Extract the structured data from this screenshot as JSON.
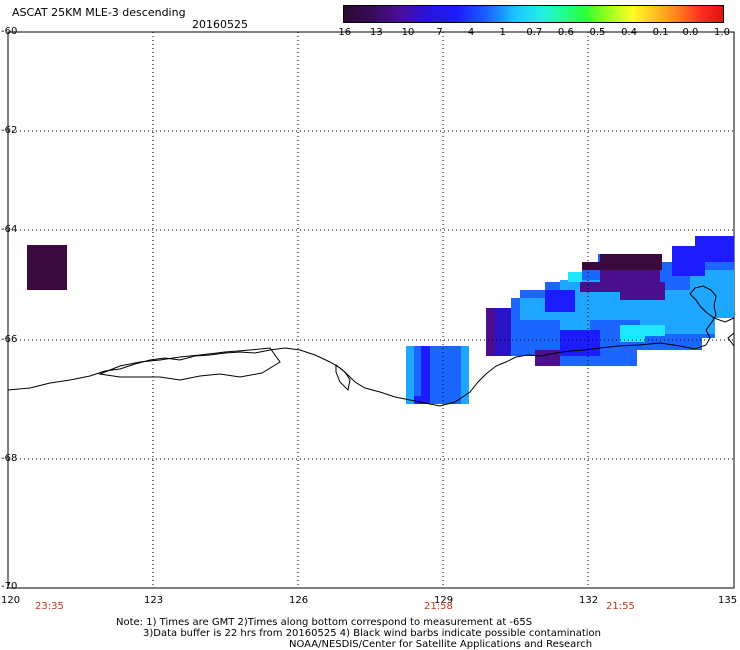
{
  "title": "ASCAT 25KM MLE-3 descending",
  "date": "20160525",
  "colorbar": {
    "labels": [
      "-16",
      "-13",
      "-10",
      "-7",
      "-4",
      "-1",
      "-0.7",
      "-0.6",
      "-0.5",
      "-0.4",
      "-0.1",
      "0.0",
      "1.0"
    ]
  },
  "axes": {
    "y_ticks": [
      "-60",
      "-62",
      "-64",
      "-66",
      "-68",
      "-70"
    ],
    "x_ticks": [
      "120",
      "123",
      "126",
      "129",
      "132",
      "135"
    ],
    "times": [
      "23:35",
      "21:58",
      "21:55"
    ]
  },
  "notes": [
    "Note: 1) Times are GMT 2)Times along bottom correspond to measurement at -65S",
    "3)Data buffer is 22 hrs from 20160525 4) Black wind barbs indicate possible contamination",
    "NOAA/NESDIS/Center for Satellite Applications and Research"
  ],
  "colors": {
    "dark_purple": "#3a0a3f",
    "indigo": "#4b0f8e",
    "blue": "#1c1cff",
    "mid_blue": "#1a66ff",
    "light_blue": "#1fa6ff",
    "cyan": "#20e6ff",
    "red_time": "#c0391b"
  }
}
